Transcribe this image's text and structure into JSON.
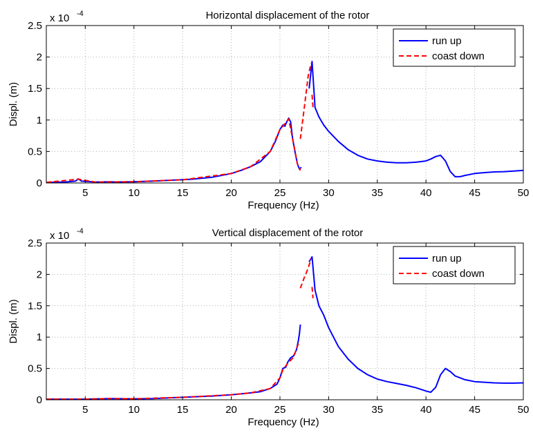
{
  "chart_data": [
    {
      "type": "line",
      "title": "Horizontal displacement of the rotor",
      "xlabel": "Frequency (Hz)",
      "ylabel": "Displ. (m)",
      "y_multiplier": "x 10",
      "y_exponent": "-4",
      "xlim": [
        1,
        50
      ],
      "ylim": [
        0,
        2.5
      ],
      "xticks": [
        5,
        10,
        15,
        20,
        25,
        30,
        35,
        40,
        45,
        50
      ],
      "yticks": [
        0,
        0.5,
        1,
        1.5,
        2,
        2.5
      ],
      "ytick_labels": [
        "0",
        "0.5",
        "1",
        "1.5",
        "2",
        "2.5"
      ],
      "grid": true,
      "legend_position": "top-right",
      "series": [
        {
          "name": "run up",
          "color": "#0000ff",
          "style": "solid",
          "segments": [
            [
              [
                1,
                0.01
              ],
              [
                3,
                0.015
              ],
              [
                4,
                0.03
              ],
              [
                4.3,
                0.065
              ],
              [
                4.6,
                0.03
              ],
              [
                6,
                0.015
              ],
              [
                7.6,
                0.02
              ],
              [
                8,
                0.015
              ],
              [
                10,
                0.02
              ],
              [
                12,
                0.03
              ],
              [
                14,
                0.045
              ],
              [
                16,
                0.06
              ],
              [
                18,
                0.09
              ],
              [
                20,
                0.15
              ],
              [
                21,
                0.2
              ],
              [
                22,
                0.26
              ],
              [
                23,
                0.34
              ],
              [
                24,
                0.5
              ],
              [
                24.5,
                0.65
              ],
              [
                25,
                0.85
              ],
              [
                25.3,
                0.92
              ],
              [
                25.5,
                0.9
              ],
              [
                25.7,
                0.97
              ],
              [
                25.9,
                1.03
              ],
              [
                26.1,
                0.97
              ],
              [
                26.3,
                0.7
              ],
              [
                26.6,
                0.45
              ],
              [
                26.8,
                0.3
              ],
              [
                27.0,
                0.22
              ],
              [
                27.2,
                0.25
              ]
            ],
            [
              [
                28.0,
                1.5
              ],
              [
                28.3,
                1.93
              ],
              [
                28.6,
                1.2
              ],
              [
                29,
                1.05
              ],
              [
                29.5,
                0.92
              ],
              [
                30,
                0.82
              ],
              [
                31,
                0.66
              ],
              [
                32,
                0.53
              ],
              [
                33,
                0.44
              ],
              [
                34,
                0.38
              ],
              [
                35,
                0.35
              ],
              [
                36,
                0.33
              ],
              [
                37,
                0.32
              ],
              [
                38,
                0.32
              ],
              [
                39,
                0.33
              ],
              [
                40,
                0.35
              ],
              [
                40.5,
                0.38
              ],
              [
                41,
                0.42
              ],
              [
                41.5,
                0.44
              ],
              [
                42,
                0.35
              ],
              [
                42.5,
                0.18
              ],
              [
                43,
                0.1
              ],
              [
                43.5,
                0.1
              ],
              [
                44,
                0.12
              ],
              [
                45,
                0.15
              ],
              [
                46,
                0.165
              ],
              [
                47,
                0.175
              ],
              [
                48,
                0.18
              ],
              [
                49,
                0.19
              ],
              [
                50,
                0.2
              ]
            ]
          ]
        },
        {
          "name": "coast down",
          "color": "#ff0000",
          "style": "dashed",
          "segments": [
            [
              [
                1,
                0.01
              ],
              [
                4.3,
                0.06
              ],
              [
                6,
                0.015
              ],
              [
                10,
                0.02
              ],
              [
                15,
                0.05
              ],
              [
                20,
                0.15
              ],
              [
                22,
                0.26
              ],
              [
                24,
                0.5
              ],
              [
                25,
                0.85
              ],
              [
                25.3,
                0.9
              ],
              [
                25.9,
                1.02
              ],
              [
                26.3,
                0.7
              ],
              [
                26.8,
                0.3
              ],
              [
                27.1,
                0.2
              ]
            ],
            [
              [
                27.1,
                0.7
              ],
              [
                27.5,
                1.2
              ],
              [
                27.9,
                1.7
              ],
              [
                28.2,
                1.9
              ]
            ],
            [
              [
                28.3,
                1.4
              ],
              [
                28.4,
                1.2
              ]
            ]
          ]
        }
      ]
    },
    {
      "type": "line",
      "title": "Vertical displacement of the rotor",
      "xlabel": "Frequency (Hz)",
      "ylabel": "Displ. (m)",
      "y_multiplier": "x 10",
      "y_exponent": "-4",
      "xlim": [
        1,
        50
      ],
      "ylim": [
        0,
        2.5
      ],
      "xticks": [
        5,
        10,
        15,
        20,
        25,
        30,
        35,
        40,
        45,
        50
      ],
      "yticks": [
        0,
        0.5,
        1,
        1.5,
        2,
        2.5
      ],
      "ytick_labels": [
        "0",
        "0.5",
        "1",
        "1.5",
        "2",
        "2.5"
      ],
      "grid": true,
      "legend_position": "top-right",
      "series": [
        {
          "name": "run up",
          "color": "#0000ff",
          "style": "solid",
          "segments": [
            [
              [
                1,
                0.01
              ],
              [
                5,
                0.01
              ],
              [
                7.5,
                0.02
              ],
              [
                10,
                0.015
              ],
              [
                12,
                0.02
              ],
              [
                15,
                0.04
              ],
              [
                18,
                0.06
              ],
              [
                20,
                0.08
              ],
              [
                22,
                0.11
              ],
              [
                23,
                0.13
              ],
              [
                24,
                0.18
              ],
              [
                24.7,
                0.25
              ],
              [
                25,
                0.35
              ],
              [
                25.3,
                0.5
              ],
              [
                25.6,
                0.52
              ],
              [
                25.8,
                0.6
              ],
              [
                26.1,
                0.67
              ],
              [
                26.4,
                0.7
              ],
              [
                26.7,
                0.8
              ],
              [
                26.9,
                0.95
              ],
              [
                27.0,
                1.05
              ],
              [
                27.1,
                1.2
              ]
            ],
            [
              [
                28.0,
                2.2
              ],
              [
                28.3,
                2.28
              ],
              [
                28.6,
                1.75
              ],
              [
                29,
                1.5
              ],
              [
                29.5,
                1.35
              ],
              [
                30,
                1.15
              ],
              [
                31,
                0.85
              ],
              [
                32,
                0.65
              ],
              [
                33,
                0.5
              ],
              [
                34,
                0.4
              ],
              [
                35,
                0.33
              ],
              [
                36,
                0.29
              ],
              [
                37,
                0.26
              ],
              [
                38,
                0.23
              ],
              [
                39,
                0.19
              ],
              [
                40,
                0.14
              ],
              [
                40.5,
                0.12
              ],
              [
                41,
                0.2
              ],
              [
                41.5,
                0.4
              ],
              [
                42,
                0.5
              ],
              [
                42.5,
                0.45
              ],
              [
                43,
                0.38
              ],
              [
                44,
                0.32
              ],
              [
                45,
                0.29
              ],
              [
                46,
                0.28
              ],
              [
                47,
                0.27
              ],
              [
                48,
                0.265
              ],
              [
                49,
                0.265
              ],
              [
                50,
                0.27
              ]
            ]
          ]
        },
        {
          "name": "coast down",
          "color": "#ff0000",
          "style": "dashed",
          "segments": [
            [
              [
                1,
                0.01
              ],
              [
                5,
                0.01
              ],
              [
                7.5,
                0.02
              ],
              [
                10,
                0.015
              ],
              [
                15,
                0.04
              ],
              [
                20,
                0.08
              ],
              [
                22,
                0.11
              ],
              [
                24,
                0.18
              ],
              [
                25,
                0.35
              ],
              [
                25.3,
                0.48
              ],
              [
                25.8,
                0.58
              ],
              [
                26.4,
                0.68
              ],
              [
                26.9,
                0.9
              ]
            ],
            [
              [
                27.1,
                1.78
              ],
              [
                27.5,
                1.95
              ],
              [
                27.9,
                2.1
              ],
              [
                28.2,
                2.25
              ]
            ],
            [
              [
                28.3,
                1.8
              ],
              [
                28.4,
                1.62
              ]
            ]
          ]
        }
      ]
    }
  ]
}
